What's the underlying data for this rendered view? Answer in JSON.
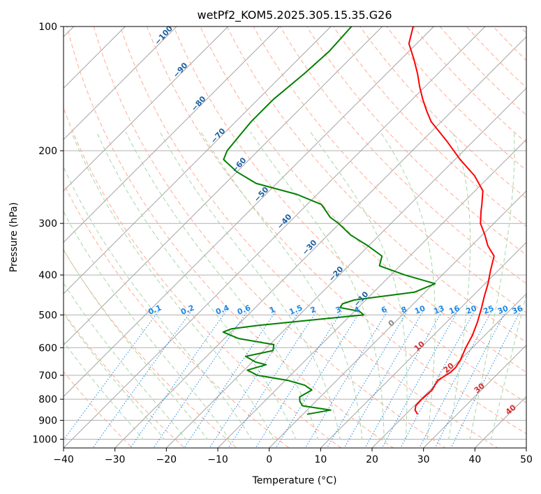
{
  "chart_data": {
    "type": "line",
    "title": "wetPf2_KOM5.2025.305.15.35.G26",
    "xlabel": "Temperature (°C)",
    "ylabel": "Pressure (hPa)",
    "xlim": [
      -40,
      50
    ],
    "ylim": [
      1050,
      100
    ],
    "yscale": "log",
    "grid": true,
    "x_ticks": [
      "−40",
      "−30",
      "−20",
      "−10",
      "0",
      "10",
      "20",
      "30",
      "40",
      "50"
    ],
    "x_tick_values": [
      -40,
      -30,
      -20,
      -10,
      0,
      10,
      20,
      30,
      40,
      50
    ],
    "y_ticks": [
      "100",
      "200",
      "300",
      "400",
      "500",
      "600",
      "700",
      "800",
      "900",
      "1000"
    ],
    "y_tick_values": [
      100,
      200,
      300,
      400,
      500,
      600,
      700,
      800,
      900,
      1000
    ],
    "colors": {
      "temperature": "#ff0000",
      "dewpoint": "#008000",
      "isotherm": "#999999",
      "dry_adiabat": "#ffab91",
      "moist_adiabat": "#a5d6a7",
      "mixing_ratio": "#1e88e5",
      "grid": "#b0b0b0"
    },
    "series": [
      {
        "key": "temperature",
        "pressure": [
          870,
          850,
          830,
          800,
          760,
          720,
          690,
          670,
          640,
          600,
          560,
          520,
          480,
          450,
          420,
          390,
          360,
          340,
          320,
          300,
          280,
          270,
          250,
          230,
          210,
          190,
          170,
          160,
          150,
          140,
          130,
          120,
          110,
          100
        ],
        "values": [
          22.3,
          21.0,
          20.3,
          20.2,
          20.4,
          19.6,
          20.5,
          20.6,
          20.0,
          18.7,
          17.6,
          16.0,
          14.0,
          12.3,
          10.6,
          8.5,
          6.4,
          3.2,
          0.5,
          -2.6,
          -4.9,
          -6.0,
          -8.5,
          -13.0,
          -19.0,
          -25.0,
          -32.0,
          -35.0,
          -38.0,
          -41.0,
          -44.0,
          -47.5,
          -51.5,
          -54.0
        ]
      },
      {
        "key": "dewpoint",
        "pressure": [
          870,
          850,
          830,
          810,
          790,
          760,
          740,
          720,
          700,
          680,
          660,
          650,
          630,
          610,
          590,
          570,
          550,
          540,
          530,
          510,
          500,
          490,
          480,
          470,
          460,
          440,
          420,
          400,
          380,
          360,
          340,
          320,
          300,
          290,
          270,
          255,
          240,
          225,
          210,
          200,
          185,
          170,
          150,
          130,
          115,
          100
        ],
        "values": [
          0.8,
          4.6,
          -1.7,
          -3.1,
          -4.0,
          -3.0,
          -5.3,
          -9.6,
          -16.5,
          -19.4,
          -16.8,
          -19.4,
          -22.4,
          -18.2,
          -19.2,
          -27.3,
          -31.5,
          -30.5,
          -26.0,
          -14.0,
          -7.5,
          -9.0,
          -13.5,
          -13.8,
          -12.3,
          -2.0,
          0.3,
          -7.3,
          -14.0,
          -15.4,
          -20.1,
          -25.6,
          -30.2,
          -33.0,
          -37.2,
          -44.0,
          -54.0,
          -60.0,
          -65.0,
          -66.0,
          -66.5,
          -67.0,
          -67.0,
          -66.0,
          -65.5,
          -66.0
        ]
      }
    ],
    "moist_adiabat_labels": [
      "−100",
      "−90",
      "−80",
      "−70",
      "−60",
      "−50",
      "−40",
      "−30",
      "−20",
      "−10"
    ],
    "dry_adiabat_labels": [
      "0",
      "10",
      "20",
      "30",
      "40"
    ],
    "mixing_ratio_labels": [
      "0.1",
      "0.2",
      "0.4",
      "0.6",
      "1",
      "1.5",
      "2",
      "3",
      "4",
      "6",
      "8",
      "10",
      "13",
      "16",
      "20",
      "25",
      "30",
      "36"
    ]
  }
}
